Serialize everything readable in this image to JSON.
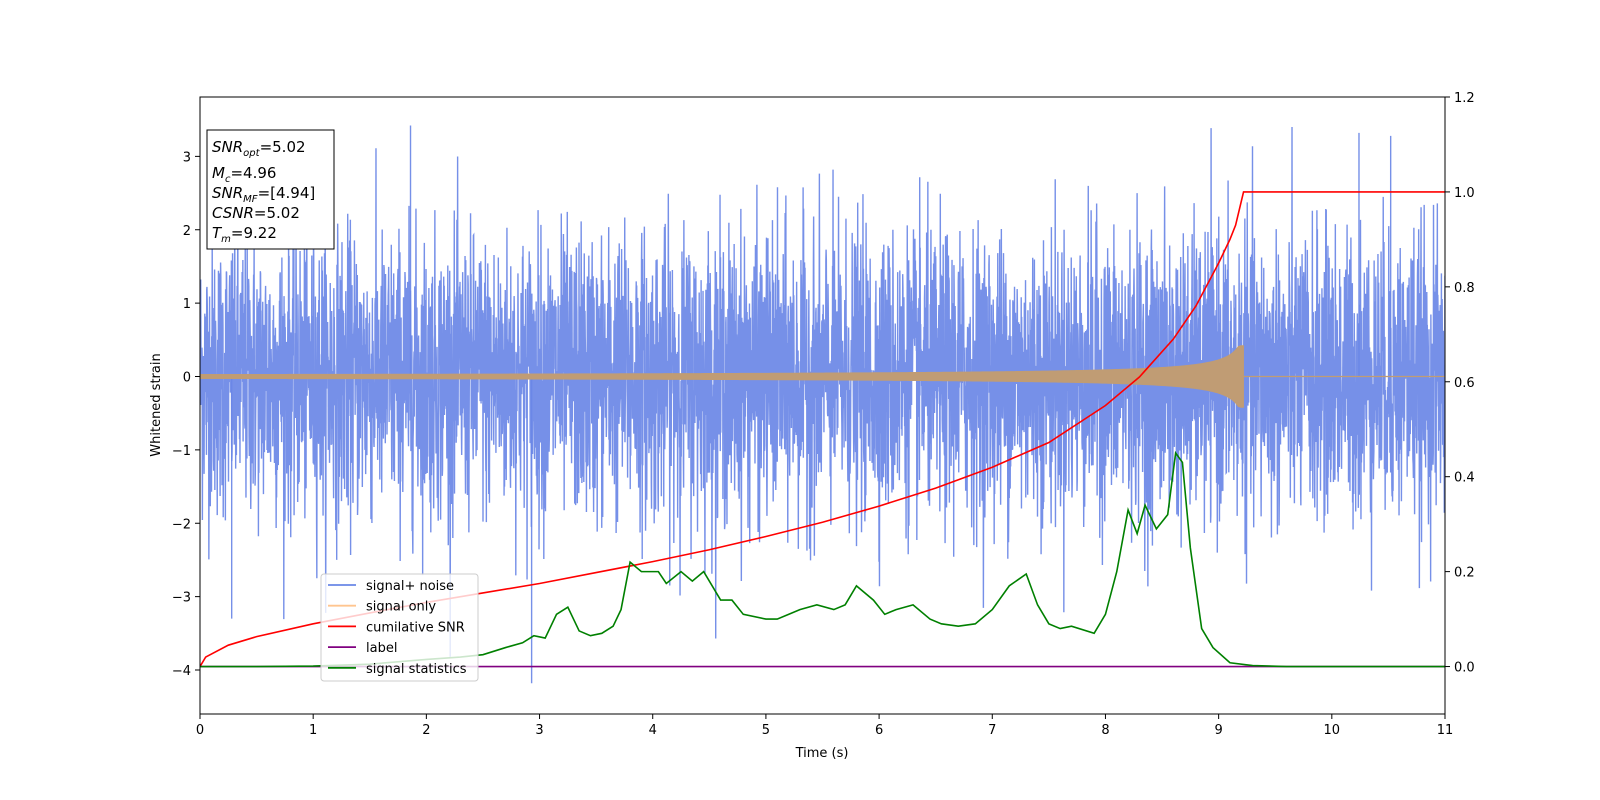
{
  "chart_data": {
    "type": "line",
    "xlabel": "Time (s)",
    "ylabel": "Whitened strain",
    "xlim": [
      0,
      11
    ],
    "ylim": [
      -4.5,
      3.6
    ],
    "y2lim": [
      -0.1,
      1.2
    ],
    "x_ticks": [
      "0",
      "1",
      "2",
      "3",
      "4",
      "5",
      "6",
      "7",
      "8",
      "9",
      "10",
      "11"
    ],
    "y_ticks": [
      "−4",
      "−3",
      "−2",
      "−1",
      "0",
      "1",
      "2",
      "3"
    ],
    "y2_ticks": [
      "0.0",
      "0.2",
      "0.4",
      "0.6",
      "0.8",
      "1.0",
      "1.2"
    ],
    "grid": false,
    "legend_position": "lower-left",
    "stats_box": {
      "snr_opt": {
        "symbol": "SNR",
        "sub": "opt",
        "value": "=5.02"
      },
      "mc": {
        "symbol": "M",
        "sub": "c",
        "value": "=4.96"
      },
      "snr_mf": {
        "symbol": "SNR",
        "sub": "MF",
        "value": "=[4.94]"
      },
      "csnr": {
        "symbol": "CSNR",
        "value": "=5.02"
      },
      "tm": {
        "symbol": "T",
        "sub": "m",
        "value": "=9.22"
      }
    },
    "series": [
      {
        "name": "signal+ noise",
        "color": "#6a87e6",
        "axis": "left",
        "description_values": {
          "typical_range": [
            -2.4,
            2.4
          ],
          "max": 3.42,
          "min": -4.18
        }
      },
      {
        "name": "signal only",
        "color": "#ffc58f",
        "axis": "left",
        "merge_time": 9.22,
        "peak_amplitude": 0.42
      },
      {
        "name": "cumilative SNR",
        "color": "#ff0000",
        "axis": "right",
        "x": [
          0,
          0.05,
          0.25,
          0.5,
          1,
          1.5,
          2,
          2.5,
          3,
          3.5,
          4,
          4.5,
          5,
          5.5,
          6,
          6.5,
          7,
          7.5,
          8,
          8.3,
          8.6,
          8.8,
          9.0,
          9.1,
          9.15,
          9.2,
          9.22,
          11
        ],
        "y": [
          0.0,
          0.02,
          0.045,
          0.063,
          0.09,
          0.113,
          0.135,
          0.155,
          0.175,
          0.198,
          0.221,
          0.246,
          0.274,
          0.304,
          0.338,
          0.376,
          0.42,
          0.472,
          0.55,
          0.61,
          0.69,
          0.76,
          0.85,
          0.9,
          0.93,
          0.98,
          1.0,
          1.0
        ]
      },
      {
        "name": "label",
        "color": "#800080",
        "axis": "right",
        "x": [
          0,
          11
        ],
        "y": [
          0,
          0
        ]
      },
      {
        "name": "signal statistics",
        "color": "#008000",
        "axis": "right",
        "x": [
          0,
          0.5,
          1,
          1.5,
          2,
          2.3,
          2.5,
          2.7,
          2.85,
          2.95,
          3.05,
          3.15,
          3.25,
          3.35,
          3.45,
          3.55,
          3.65,
          3.72,
          3.8,
          3.9,
          4.05,
          4.12,
          4.25,
          4.35,
          4.45,
          4.6,
          4.7,
          4.8,
          5.0,
          5.1,
          5.2,
          5.3,
          5.45,
          5.6,
          5.7,
          5.8,
          5.95,
          6.05,
          6.15,
          6.3,
          6.45,
          6.55,
          6.7,
          6.85,
          7.0,
          7.15,
          7.3,
          7.4,
          7.5,
          7.6,
          7.7,
          7.9,
          8.0,
          8.1,
          8.2,
          8.28,
          8.35,
          8.45,
          8.55,
          8.62,
          8.68,
          8.75,
          8.85,
          8.95,
          9.1,
          9.3,
          9.6,
          10,
          11
        ],
        "y": [
          0.0,
          0.0,
          0.001,
          0.005,
          0.015,
          0.02,
          0.025,
          0.04,
          0.05,
          0.065,
          0.06,
          0.11,
          0.125,
          0.075,
          0.065,
          0.07,
          0.085,
          0.12,
          0.22,
          0.2,
          0.2,
          0.175,
          0.2,
          0.18,
          0.2,
          0.14,
          0.14,
          0.11,
          0.1,
          0.1,
          0.11,
          0.12,
          0.13,
          0.12,
          0.13,
          0.17,
          0.14,
          0.11,
          0.12,
          0.13,
          0.1,
          0.09,
          0.085,
          0.09,
          0.12,
          0.17,
          0.195,
          0.13,
          0.09,
          0.08,
          0.085,
          0.07,
          0.11,
          0.2,
          0.33,
          0.28,
          0.34,
          0.29,
          0.32,
          0.45,
          0.43,
          0.25,
          0.08,
          0.04,
          0.008,
          0.002,
          0.0,
          0.0,
          0.0
        ]
      }
    ]
  }
}
